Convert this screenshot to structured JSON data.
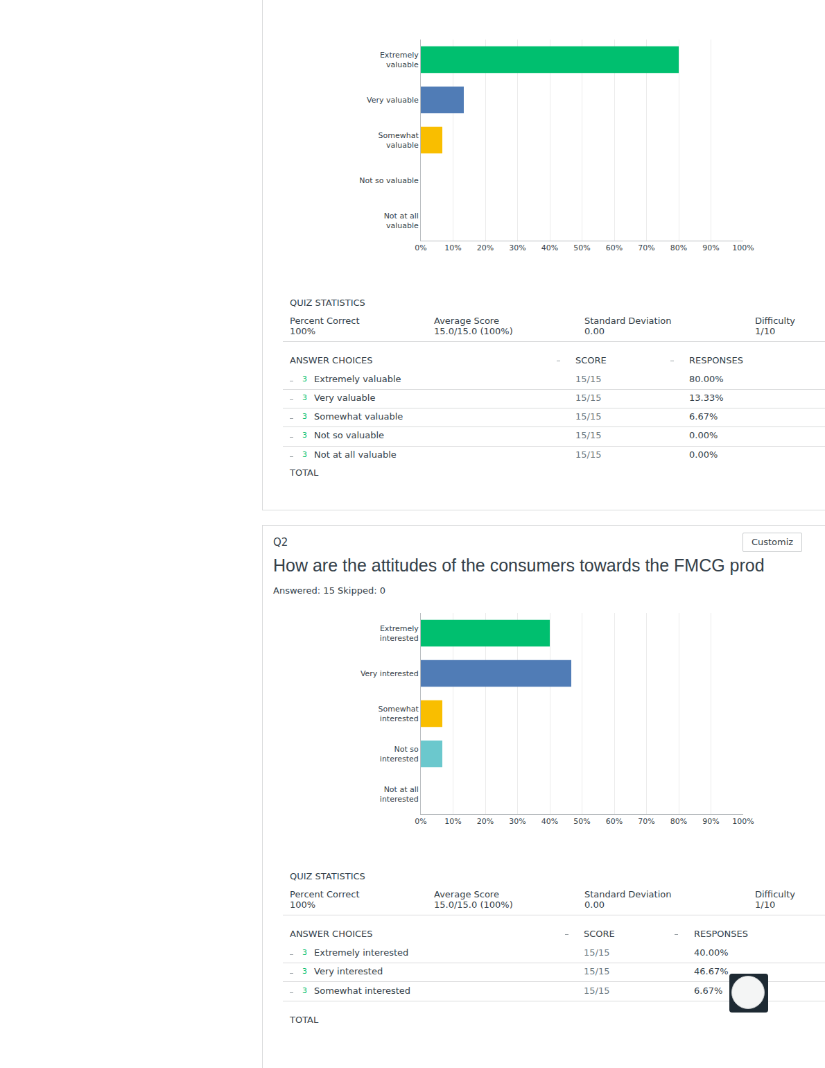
{
  "chart_data": [
    {
      "type": "bar",
      "orientation": "horizontal",
      "categories": [
        "Extremely valuable",
        "Very valuable",
        "Somewhat valuable",
        "Not so valuable",
        "Not at all valuable"
      ],
      "values": [
        80,
        13.33,
        6.67,
        0,
        0
      ],
      "colors": [
        "#00bf6f",
        "#507cb6",
        "#f9be00",
        "#6bc8cd",
        "#ff8b4f"
      ],
      "xlim": [
        0,
        100
      ],
      "xticks": [
        {
          "value": 0,
          "label": "0%"
        },
        {
          "value": 10,
          "label": "10%"
        },
        {
          "value": 20,
          "label": "20%"
        },
        {
          "value": 30,
          "label": "30%"
        },
        {
          "value": 40,
          "label": "40%"
        },
        {
          "value": 50,
          "label": "50%"
        },
        {
          "value": 60,
          "label": "60%"
        },
        {
          "value": 70,
          "label": "70%"
        },
        {
          "value": 80,
          "label": "80%"
        },
        {
          "value": 90,
          "label": "90%"
        },
        {
          "value": 100,
          "label": "100%"
        }
      ],
      "grid": true
    },
    {
      "type": "bar",
      "orientation": "horizontal",
      "categories": [
        "Extremely interested",
        "Very interested",
        "Somewhat interested",
        "Not so interested",
        "Not at all interested"
      ],
      "values": [
        40,
        46.67,
        6.67,
        6.67,
        0
      ],
      "colors": [
        "#00bf6f",
        "#507cb6",
        "#f9be00",
        "#6bc8cd",
        "#ff8b4f"
      ],
      "xlim": [
        0,
        100
      ],
      "xticks": [
        {
          "value": 0,
          "label": "0%"
        },
        {
          "value": 10,
          "label": "10%"
        },
        {
          "value": 20,
          "label": "20%"
        },
        {
          "value": 30,
          "label": "30%"
        },
        {
          "value": 40,
          "label": "40%"
        },
        {
          "value": 50,
          "label": "50%"
        },
        {
          "value": 60,
          "label": "60%"
        },
        {
          "value": 70,
          "label": "70%"
        },
        {
          "value": 80,
          "label": "80%"
        },
        {
          "value": 90,
          "label": "90%"
        },
        {
          "value": 100,
          "label": "100%"
        }
      ],
      "grid": true
    }
  ],
  "page": {
    "sections": [
      {
        "quiz_statistics": {
          "heading": "QUIZ STATISTICS",
          "columns": [
            {
              "label": "Percent Correct",
              "value": "100%"
            },
            {
              "label": "Average Score",
              "value": "15.0/15.0 (100%)"
            },
            {
              "label": "Standard Deviation",
              "value": "0.00"
            },
            {
              "label": "Difficulty",
              "value": "1/10"
            }
          ]
        },
        "answer_table": {
          "headers": [
            "ANSWER CHOICES",
            "SCORE",
            "RESPONSES"
          ],
          "rows": [
            [
              "3",
              "Extremely valuable",
              "15/15",
              "80.00%"
            ],
            [
              "3",
              "Very valuable",
              "15/15",
              "13.33%"
            ],
            [
              "3",
              "Somewhat valuable",
              "15/15",
              "6.67%"
            ],
            [
              "3",
              "Not so valuable",
              "15/15",
              "0.00%"
            ],
            [
              "3",
              "Not at all valuable",
              "15/15",
              "0.00%"
            ]
          ],
          "total": "TOTAL"
        }
      },
      {
        "label": "Q2",
        "button": "Customiz",
        "title": "How are the attitudes of the consumers towards the FMCG prod",
        "answered": "Answered: 15",
        "skipped": "Skipped: 0",
        "quiz_statistics": {
          "heading": "QUIZ STATISTICS",
          "columns": [
            {
              "label": "Percent Correct",
              "value": "100%"
            },
            {
              "label": "Average Score",
              "value": "15.0/15.0 (100%)"
            },
            {
              "label": "Standard Deviation",
              "value": "0.00"
            },
            {
              "label": "Difficulty",
              "value": "1/10"
            }
          ]
        },
        "answer_table": {
          "headers": [
            "ANSWER CHOICES",
            "SCORE",
            "RESPONSES"
          ],
          "rows": [
            [
              "3",
              "Extremely interested",
              "15/15",
              "40.00%"
            ],
            [
              "3",
              "Very interested",
              "15/15",
              "46.67%"
            ],
            [
              "3",
              "Somewhat interested",
              "15/15",
              "6.67%"
            ]
          ],
          "total": "TOTAL"
        }
      }
    ]
  }
}
